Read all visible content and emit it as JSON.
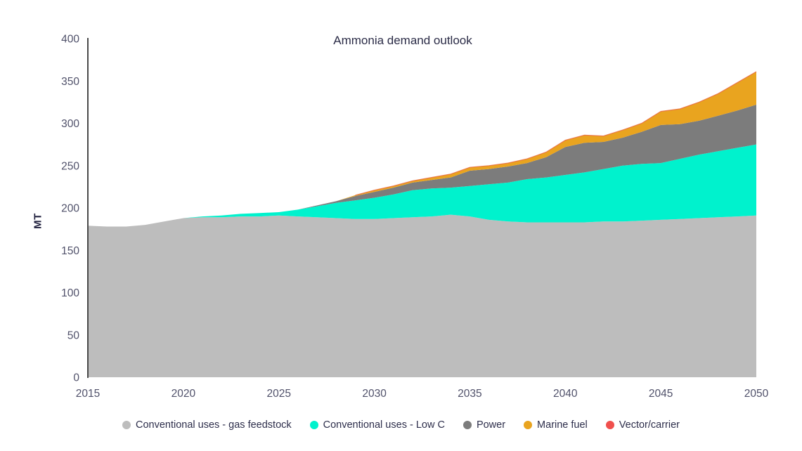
{
  "title": "Ammonia demand outlook",
  "y_axis_label": "MT",
  "colors": {
    "background": "#ffffff",
    "axis_line": "#4a4a4a",
    "tick_text": "#50516a",
    "title_text": "#2b2c47",
    "legend_text": "#2d2e4b",
    "stack_top_edge": "#e86a3e"
  },
  "chart_data": {
    "type": "area",
    "stacked": true,
    "title": "Ammonia demand outlook",
    "xlabel": "",
    "ylabel": "MT",
    "xlim": [
      2015,
      2050
    ],
    "ylim": [
      0,
      400
    ],
    "x_ticks": [
      2015,
      2020,
      2025,
      2030,
      2035,
      2040,
      2045,
      2050
    ],
    "y_ticks": [
      0,
      50,
      100,
      150,
      200,
      250,
      300,
      350,
      400
    ],
    "grid": false,
    "legend_position": "bottom",
    "x": [
      2015,
      2016,
      2017,
      2018,
      2019,
      2020,
      2021,
      2022,
      2023,
      2024,
      2025,
      2026,
      2027,
      2028,
      2029,
      2030,
      2031,
      2032,
      2033,
      2034,
      2035,
      2036,
      2037,
      2038,
      2039,
      2040,
      2041,
      2042,
      2043,
      2044,
      2045,
      2046,
      2047,
      2048,
      2049,
      2050
    ],
    "series": [
      {
        "name": "Conventional uses - gas feedstock",
        "color": "#bdbdbd",
        "values": [
          179,
          178,
          178,
          180,
          184,
          188,
          189,
          189,
          190,
          190,
          191,
          190,
          189,
          188,
          187,
          187,
          188,
          189,
          190,
          192,
          190,
          186,
          184,
          183,
          183,
          183,
          183,
          184,
          184,
          185,
          186,
          187,
          188,
          189,
          190,
          191
        ]
      },
      {
        "name": "Conventional uses - Low C",
        "color": "#00f2cd",
        "values": [
          0,
          0,
          0,
          0,
          0,
          0,
          1,
          2,
          3,
          4,
          4,
          8,
          13,
          18,
          22,
          25,
          28,
          32,
          33,
          32,
          36,
          42,
          46,
          51,
          53,
          56,
          59,
          62,
          66,
          67,
          67,
          71,
          75,
          78,
          81,
          84
        ]
      },
      {
        "name": "Power",
        "color": "#7c7c7c",
        "values": [
          0,
          0,
          0,
          0,
          0,
          0,
          0,
          0,
          0,
          0,
          0,
          0,
          1,
          2,
          5,
          7,
          8,
          9,
          10,
          12,
          18,
          18,
          19,
          19,
          24,
          33,
          35,
          32,
          33,
          38,
          45,
          41,
          40,
          42,
          44,
          47
        ]
      },
      {
        "name": "Marine fuel",
        "color": "#e9a41f",
        "values": [
          0,
          0,
          0,
          0,
          0,
          0,
          0,
          0,
          0,
          0,
          0,
          0,
          0,
          0,
          1,
          2,
          2,
          2,
          3,
          4,
          4,
          4,
          4,
          5,
          6,
          8,
          9,
          7,
          9,
          10,
          16,
          18,
          22,
          26,
          33,
          39
        ]
      },
      {
        "name": "Vector/carrier",
        "color": "#f0504d",
        "values": [
          0,
          0,
          0,
          0,
          0,
          0,
          0,
          0,
          0,
          0,
          0,
          0,
          0,
          0,
          0,
          0,
          0,
          0,
          0,
          0,
          0,
          0,
          0,
          0,
          0,
          0,
          0,
          0,
          0,
          0,
          0,
          0,
          0,
          0,
          0,
          0
        ]
      }
    ]
  }
}
